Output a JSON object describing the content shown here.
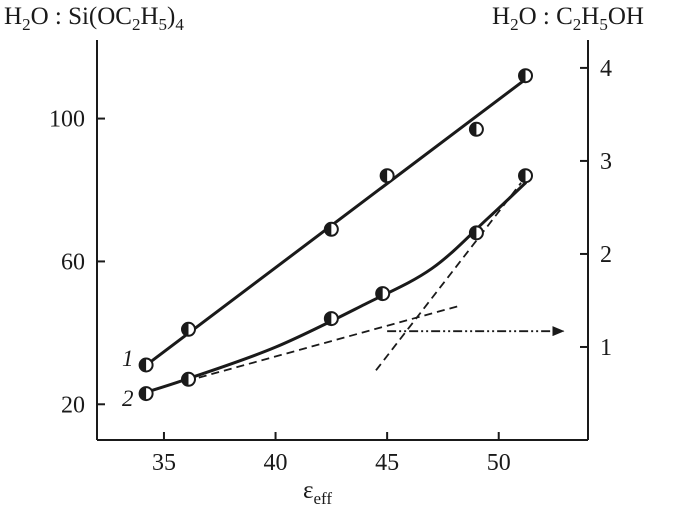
{
  "chart_data": {
    "type": "line",
    "title": "",
    "xlabel": "ε",
    "xlabel_sub": "eff",
    "y_left_label": "H2O : Si(OC2H5)4",
    "y_right_label": "H2O : C2H5OH",
    "xlim": [
      32,
      54
    ],
    "ylim_left": [
      10,
      122
    ],
    "ylim_right": [
      0.0,
      4.3
    ],
    "x_ticks": [
      35,
      40,
      45,
      50
    ],
    "y_left_ticks": [
      20,
      60,
      100
    ],
    "y_right_ticks": [
      1,
      2,
      3,
      4
    ],
    "grid": false,
    "series": [
      {
        "name": "1",
        "axis": "left",
        "points": [
          {
            "x": 34.2,
            "y": 31
          },
          {
            "x": 36.1,
            "y": 41
          },
          {
            "x": 42.5,
            "y": 69
          },
          {
            "x": 45.0,
            "y": 84
          },
          {
            "x": 49.0,
            "y": 97
          },
          {
            "x": 51.2,
            "y": 112
          }
        ],
        "fit": [
          [
            34.0,
            30
          ],
          [
            51.2,
            111
          ]
        ]
      },
      {
        "name": "2",
        "axis": "left",
        "points": [
          {
            "x": 34.2,
            "y": 23
          },
          {
            "x": 36.1,
            "y": 27
          },
          {
            "x": 42.5,
            "y": 44
          },
          {
            "x": 44.8,
            "y": 51
          },
          {
            "x": 49.0,
            "y": 68
          },
          {
            "x": 51.2,
            "y": 84
          }
        ],
        "fit": [
          [
            34.0,
            23
          ],
          [
            36.0,
            27
          ],
          [
            40.0,
            36
          ],
          [
            44.0,
            48
          ],
          [
            47.0,
            58
          ],
          [
            49.5,
            72
          ],
          [
            51.2,
            82
          ]
        ]
      }
    ],
    "guides": [
      {
        "style": "dashed",
        "points": [
          [
            36.0,
            26.5
          ],
          [
            48.2,
            47.5
          ]
        ]
      },
      {
        "style": "dashed",
        "points": [
          [
            44.5,
            29.5
          ],
          [
            51.0,
            82
          ]
        ]
      },
      {
        "style": "dash-dot-arrow",
        "axis": "right",
        "points": [
          [
            45.0,
            1.17
          ],
          [
            52.9,
            1.17
          ]
        ]
      }
    ]
  }
}
